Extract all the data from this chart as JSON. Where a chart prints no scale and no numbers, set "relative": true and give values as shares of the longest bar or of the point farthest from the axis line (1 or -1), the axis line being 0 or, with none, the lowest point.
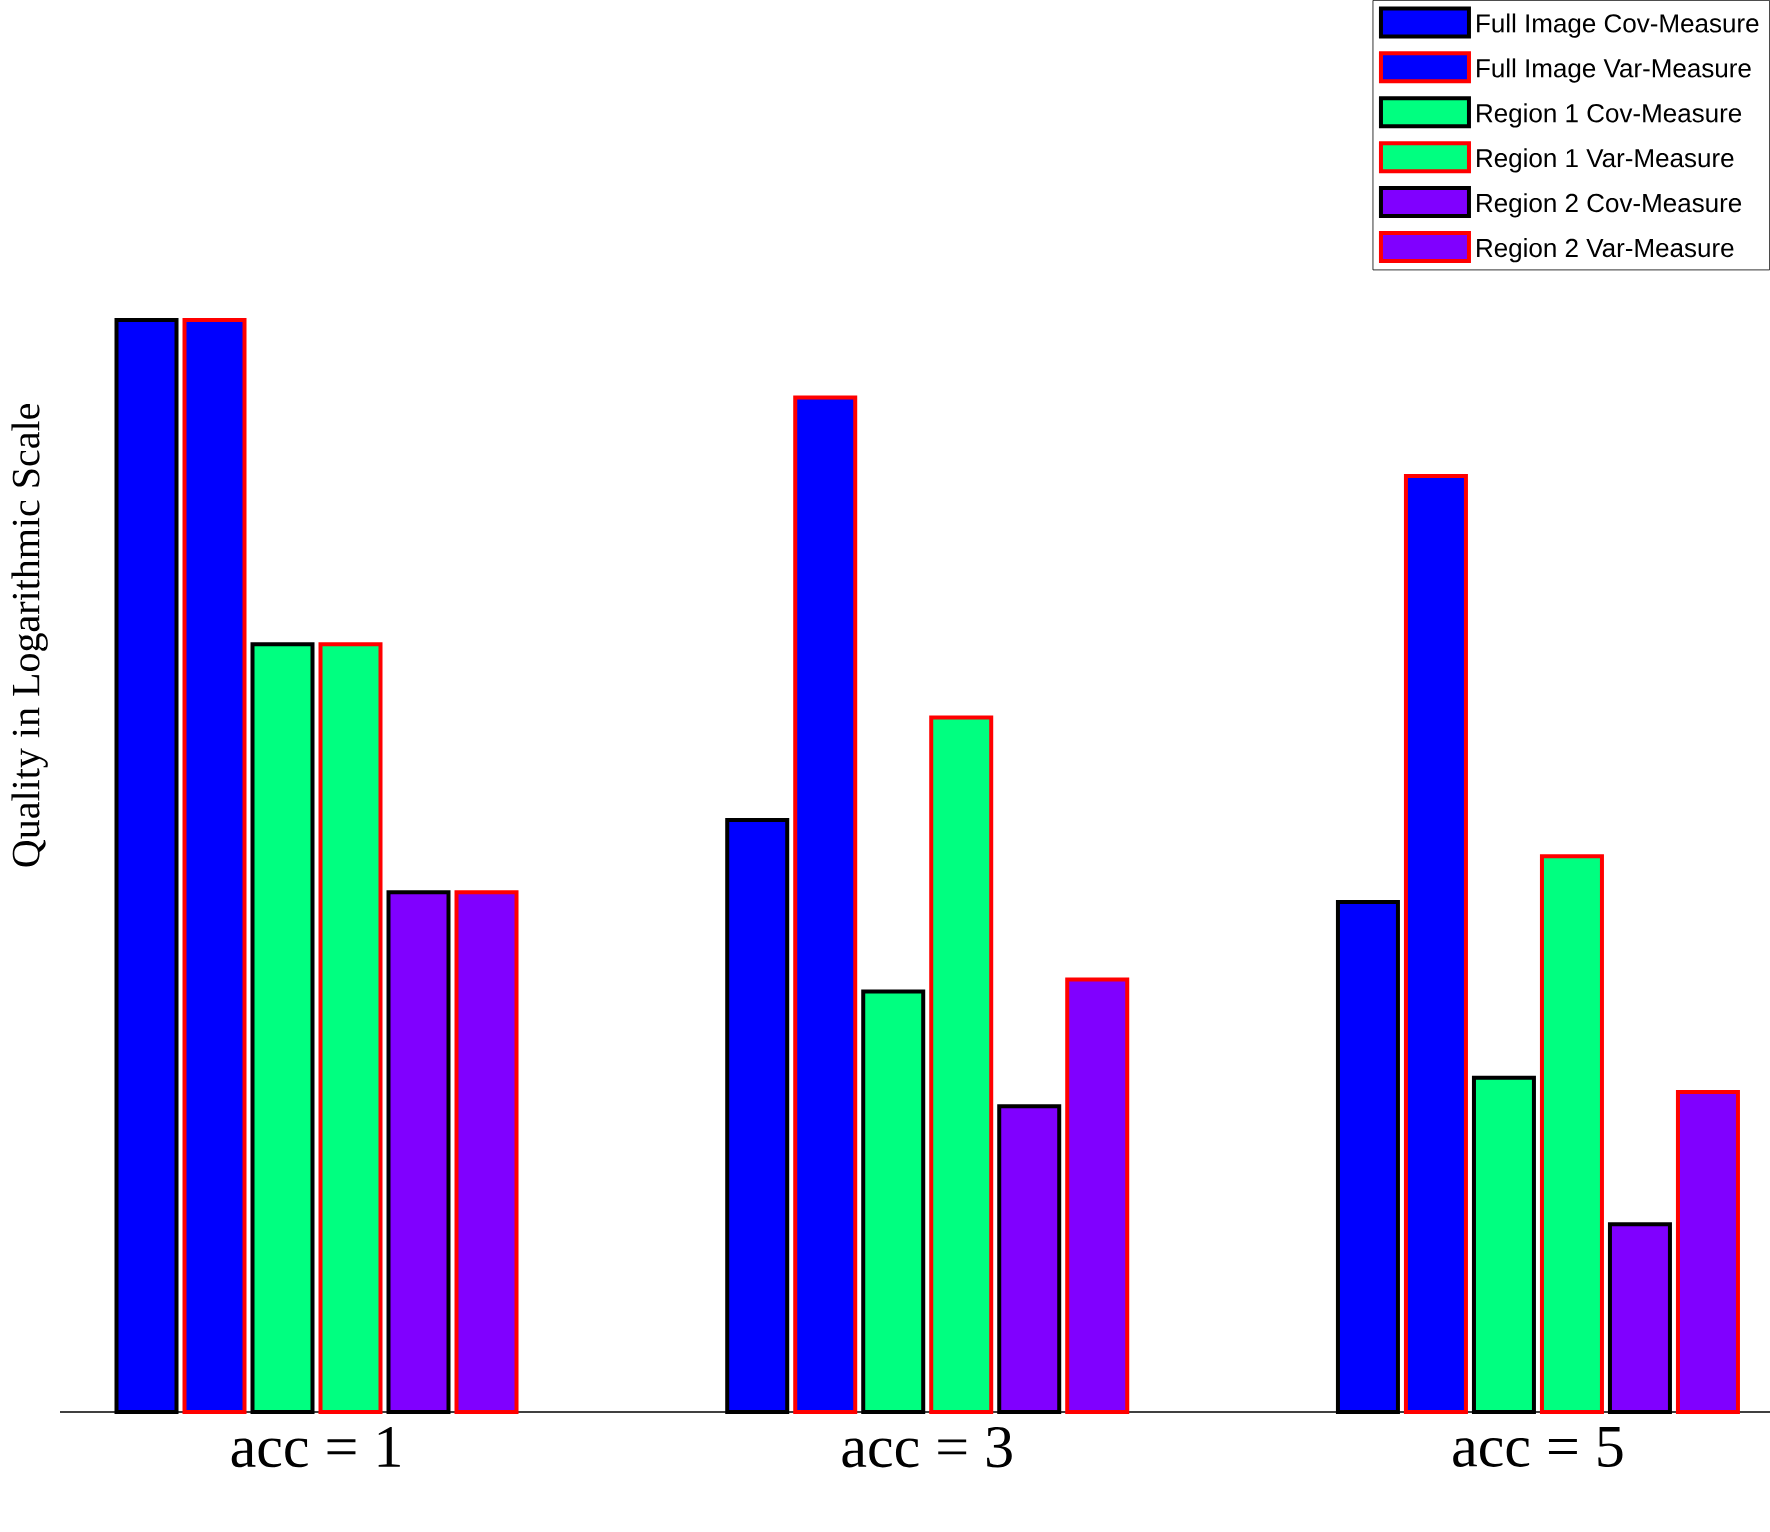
{
  "chart_data": {
    "type": "bar",
    "ylabel": "Quality in Logarithmic Scale",
    "relative": true,
    "legend": "top right",
    "categories": [
      "acc = 1",
      "acc = 3",
      "acc = 5"
    ],
    "series": [
      {
        "name": "Full Image Cov-Measure",
        "color": "#0000ff",
        "values": [
          1,
          0.542,
          0.467
        ]
      },
      {
        "name": "Full Image Var-Measure",
        "color": "#0000ff",
        "values": [
          1,
          0.929,
          0.857
        ]
      },
      {
        "name": "Region 1 Cov-Measure",
        "color": "#00ff80",
        "values": [
          0.703,
          0.385,
          0.306
        ]
      },
      {
        "name": "Region 1 Var-Measure",
        "color": "#00ff80",
        "values": [
          0.703,
          0.636,
          0.509
        ]
      },
      {
        "name": "Region 2 Cov-Measure",
        "color": "#8000ff",
        "values": [
          0.476,
          0.28,
          0.172
        ]
      },
      {
        "name": "Region 2 Var-Measure",
        "color": "#8000ff",
        "values": [
          0.476,
          0.396,
          0.293
        ]
      }
    ]
  }
}
